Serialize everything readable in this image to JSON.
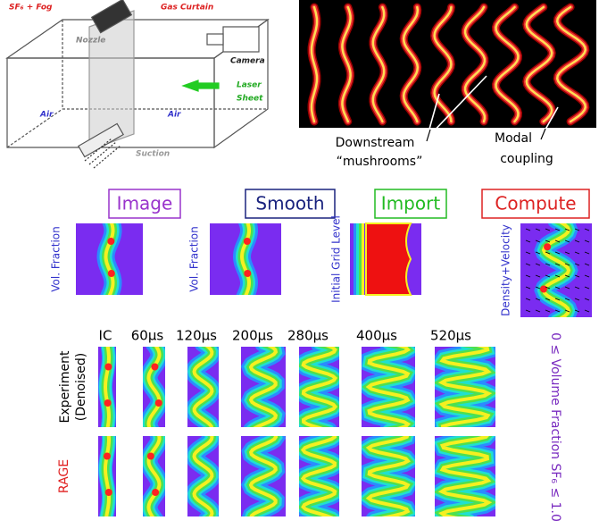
{
  "setup_diagram": {
    "gas_label": "SF₆ + Fog",
    "curtain_label": "Gas Curtain",
    "nozzle_label": "Nozzle",
    "camera_label": "Camera",
    "laser_label": [
      "Laser",
      "Sheet"
    ],
    "air_labels": [
      "Air",
      "Air"
    ],
    "suction_label": "Suction"
  },
  "photo": {
    "annotations": [
      {
        "lines": [
          "Downstream",
          "“mushrooms”"
        ]
      },
      {
        "lines": [
          "Modal",
          "coupling"
        ]
      }
    ]
  },
  "pipeline": {
    "steps": [
      {
        "title": "Image",
        "side_label": "Vol. Fraction"
      },
      {
        "title": "Smooth",
        "side_label": "Vol. Fraction"
      },
      {
        "title": "Import",
        "side_label": "Initial Grid Level"
      },
      {
        "title": "Compute",
        "side_label": "Density+Velocity"
      }
    ]
  },
  "comparison": {
    "times": [
      "IC",
      "60µs",
      "120µs",
      "200µs",
      "280µs",
      "400µs",
      "520µs"
    ],
    "rows": [
      {
        "lines": [
          "Experiment",
          "(Denoised)"
        ]
      },
      {
        "lines": [
          "RAGE"
        ]
      }
    ],
    "colorbar_label": "0 ≤ Volume Fraction SF₆ ≤ 1.0"
  }
}
